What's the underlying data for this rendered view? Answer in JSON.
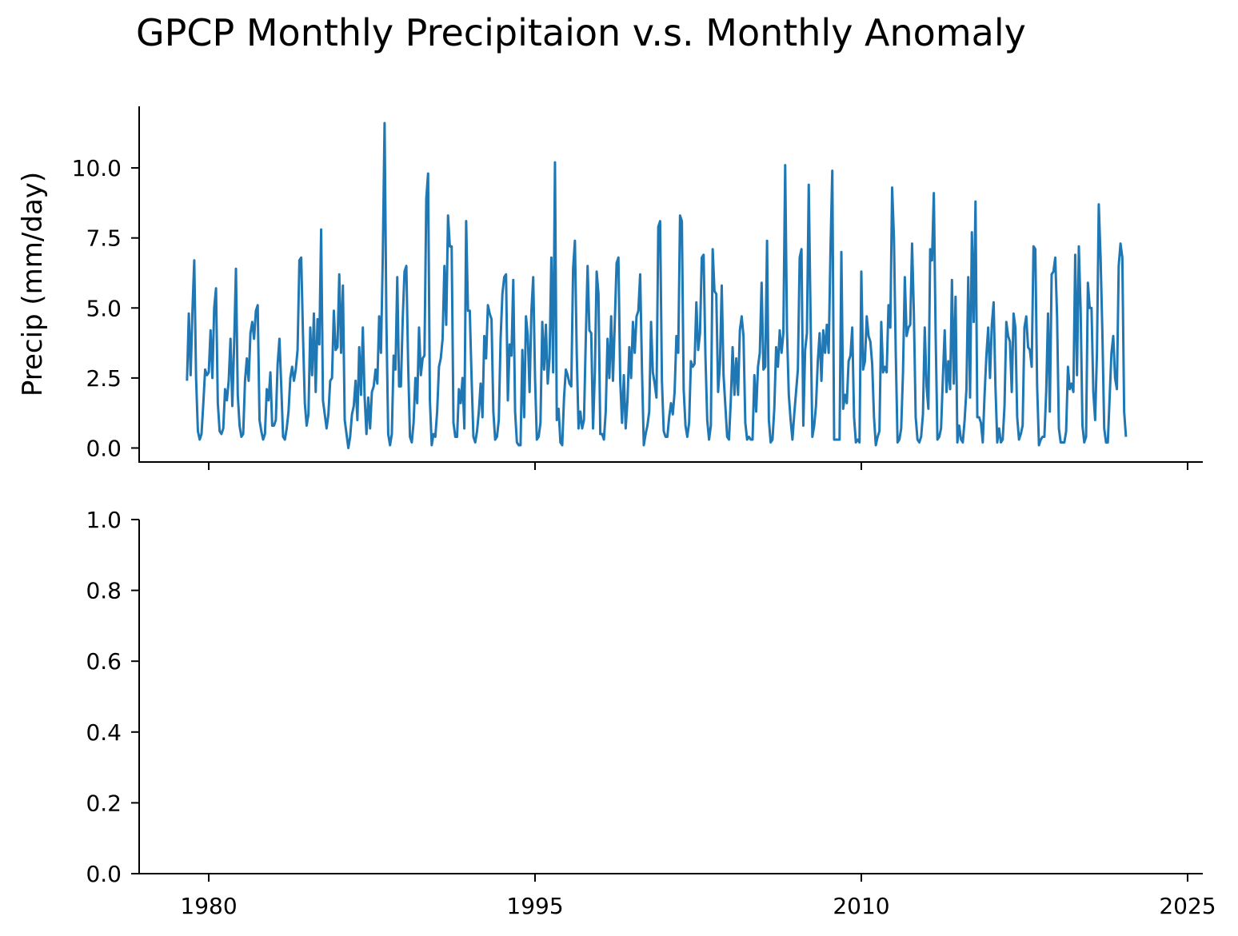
{
  "figure": {
    "title": "GPCP Monthly Precipitaion v.s. Monthly Anomaly"
  },
  "chart_data": [
    {
      "type": "line",
      "panel": "top",
      "ylabel": "Precip (mm/day)",
      "xlabel": "",
      "ylim": [
        -0.5,
        12.2
      ],
      "xlim": [
        1976.8,
        2025.7
      ],
      "yticks": [
        0.0,
        2.5,
        5.0,
        7.5,
        10.0
      ],
      "ytick_labels": [
        "0.0",
        "2.5",
        "5.0",
        "7.5",
        "10.0"
      ],
      "xticks": [
        1980,
        1995,
        2010,
        2025
      ],
      "xtick_labels": [
        "",
        "",
        "",
        ""
      ],
      "grid": false,
      "line_color": "#1f77b4",
      "series": [
        {
          "x_start": 1979.0,
          "x_step": 0.0833333,
          "values": [
            2.4,
            4.8,
            2.6,
            4.9,
            6.7,
            2.5,
            0.6,
            0.3,
            0.5,
            1.6,
            2.8,
            2.6,
            2.7,
            4.2,
            2.5,
            5.0,
            5.7,
            1.6,
            0.6,
            0.5,
            0.7,
            2.1,
            1.7,
            2.4,
            3.9,
            1.5,
            3.7,
            6.4,
            1.9,
            0.8,
            0.4,
            0.5,
            2.4,
            3.2,
            2.4,
            4.1,
            4.5,
            3.9,
            4.9,
            5.1,
            1.0,
            0.6,
            0.3,
            0.5,
            2.1,
            1.7,
            2.7,
            0.8,
            0.8,
            1.0,
            3.0,
            3.9,
            2.2,
            0.4,
            0.3,
            0.7,
            1.3,
            2.5,
            2.9,
            2.4,
            2.8,
            3.5,
            6.7,
            6.8,
            4.0,
            1.6,
            0.8,
            1.2,
            4.3,
            2.6,
            4.8,
            2.0,
            4.6,
            3.7,
            7.8,
            1.7,
            1.2,
            0.7,
            1.2,
            2.4,
            2.5,
            4.9,
            3.5,
            3.6,
            6.2,
            3.4,
            5.8,
            1.0,
            0.5,
            0.0,
            0.4,
            1.2,
            1.5,
            2.4,
            1.0,
            3.6,
            1.9,
            4.3,
            1.8,
            0.5,
            1.8,
            0.7,
            2.0,
            2.2,
            2.8,
            2.3,
            4.7,
            3.4,
            6.8,
            11.6,
            4.5,
            0.5,
            0.1,
            0.5,
            3.3,
            2.8,
            6.1,
            2.2,
            2.2,
            4.6,
            6.3,
            6.5,
            3.0,
            0.4,
            0.2,
            0.9,
            2.5,
            1.6,
            4.3,
            2.6,
            3.2,
            3.3,
            8.9,
            9.8,
            1.7,
            0.1,
            0.5,
            0.4,
            1.3,
            2.9,
            3.2,
            3.9,
            6.5,
            4.4,
            8.3,
            7.2,
            7.2,
            0.9,
            0.4,
            0.4,
            2.1,
            1.6,
            2.5,
            0.7,
            8.1,
            4.9,
            4.9,
            2.5,
            0.4,
            0.2,
            0.6,
            1.3,
            2.3,
            1.1,
            4.0,
            3.2,
            5.1,
            4.8,
            4.6,
            1.3,
            0.3,
            0.4,
            1.0,
            3.9,
            5.5,
            6.1,
            6.2,
            1.7,
            3.7,
            3.3,
            6.0,
            1.3,
            0.2,
            0.1,
            0.1,
            3.5,
            1.1,
            4.7,
            4.0,
            2.0,
            4.9,
            6.1,
            2.5,
            0.3,
            0.4,
            0.9,
            4.5,
            2.8,
            4.4,
            2.3,
            3.2,
            6.8,
            2.7,
            10.2,
            1.0,
            1.4,
            0.2,
            0.1,
            1.8,
            2.8,
            2.6,
            2.3,
            2.2,
            6.4,
            7.4,
            3.4,
            0.7,
            1.3,
            0.7,
            1.0,
            3.9,
            6.5,
            4.2,
            4.1,
            0.7,
            2.7,
            6.3,
            5.5,
            0.5,
            0.5,
            0.3,
            1.3,
            3.9,
            2.5,
            4.7,
            2.4,
            4.5,
            6.6,
            6.8,
            2.4,
            0.9,
            2.6,
            0.7,
            1.7,
            3.6,
            2.5,
            4.5,
            3.4,
            4.7,
            4.9,
            6.2,
            2.8,
            0.1,
            0.5,
            0.8,
            1.3,
            4.5,
            2.7,
            2.3,
            1.8,
            7.9,
            8.1,
            2.4,
            0.6,
            0.4,
            0.4,
            1.1,
            1.6,
            1.2,
            2.0,
            4.0,
            3.4,
            8.3,
            8.1,
            2.1,
            0.8,
            0.4,
            0.9,
            3.1,
            2.9,
            3.0,
            5.2,
            3.5,
            4.1,
            6.8,
            6.9,
            3.3,
            1.0,
            0.3,
            0.8,
            7.1,
            5.6,
            5.5,
            2.0,
            3.0,
            5.8,
            2.6,
            1.5,
            0.4,
            0.3,
            1.7,
            3.6,
            1.9,
            3.2,
            1.9,
            4.2,
            4.7,
            4.0,
            0.9,
            0.3,
            0.4,
            0.3,
            0.3,
            2.6,
            1.3,
            2.9,
            3.4,
            5.9,
            2.8,
            2.9,
            7.4,
            1.0,
            0.2,
            0.3,
            1.4,
            3.6,
            2.9,
            4.2,
            3.4,
            4.1,
            10.1,
            4.2,
            1.9,
            1.0,
            0.3,
            1.2,
            2.0,
            2.8,
            6.8,
            7.1,
            0.8,
            3.5,
            4.1,
            9.4,
            4.7,
            0.4,
            0.8,
            1.5,
            3.1,
            4.1,
            2.4,
            4.2,
            3.4,
            4.4,
            3.4,
            7.1,
            9.9,
            0.3,
            0.3,
            0.3,
            0.3,
            7.0,
            1.4,
            1.9,
            1.6,
            3.1,
            3.3,
            4.3,
            1.1,
            0.2,
            0.3,
            0.2,
            6.3,
            2.8,
            3.1,
            4.7,
            4.0,
            3.8,
            3.0,
            1.1,
            0.1,
            0.4,
            0.6,
            4.5,
            2.7,
            2.9,
            2.7,
            5.1,
            4.3,
            9.3,
            7.5,
            3.4,
            0.2,
            0.3,
            0.7,
            2.7,
            6.1,
            4.0,
            4.3,
            4.4,
            7.3,
            4.8,
            1.1,
            0.3,
            0.2,
            0.4,
            1.2,
            4.3,
            2.2,
            1.4,
            7.1,
            6.7,
            9.1,
            4.1,
            0.3,
            0.4,
            0.7,
            2.5,
            4.2,
            2.0,
            3.1,
            2.1,
            6.0,
            2.3,
            5.4,
            0.2,
            0.8,
            0.3,
            0.2,
            1.0,
            2.1,
            6.1,
            1.8,
            7.7,
            4.5,
            8.8,
            1.1,
            1.1,
            0.9,
            0.2,
            1.9,
            3.3,
            4.3,
            2.5,
            4.4,
            5.2,
            2.2,
            0.2,
            0.7,
            0.2,
            0.3,
            1.5,
            4.5,
            4.0,
            3.8,
            2.0,
            4.8,
            4.3,
            1.1,
            0.3,
            0.5,
            0.8,
            4.3,
            4.7,
            3.6,
            3.5,
            2.9,
            7.2,
            7.1,
            2.2,
            0.1,
            0.3,
            0.4,
            0.4,
            2.0,
            4.8,
            1.3,
            6.2,
            6.3,
            6.8,
            4.7,
            0.7,
            0.2,
            0.2,
            0.2,
            0.6,
            2.9,
            2.1,
            2.3,
            2.0,
            6.9,
            2.6,
            7.2,
            4.9,
            0.8,
            0.2,
            0.4,
            5.9,
            5.0,
            5.0,
            2.0,
            1.0,
            3.4,
            8.7,
            6.8,
            4.1,
            0.7,
            0.2,
            0.2,
            1.8,
            3.4,
            4.0,
            2.5,
            2.1,
            6.5,
            7.3,
            6.8,
            1.3,
            0.4
          ]
        }
      ]
    },
    {
      "type": "line",
      "panel": "bottom",
      "ylabel": "",
      "xlabel": "",
      "ylim": [
        0.0,
        1.0
      ],
      "xlim": [
        1976.8,
        2025.7
      ],
      "yticks": [
        0.0,
        0.2,
        0.4,
        0.6,
        0.8,
        1.0
      ],
      "ytick_labels": [
        "0.0",
        "0.2",
        "0.4",
        "0.6",
        "0.8",
        "1.0"
      ],
      "xticks": [
        1980,
        1995,
        2010,
        2025
      ],
      "xtick_labels": [
        "1980",
        "1995",
        "2010",
        "2025"
      ],
      "grid": false,
      "series": []
    }
  ]
}
